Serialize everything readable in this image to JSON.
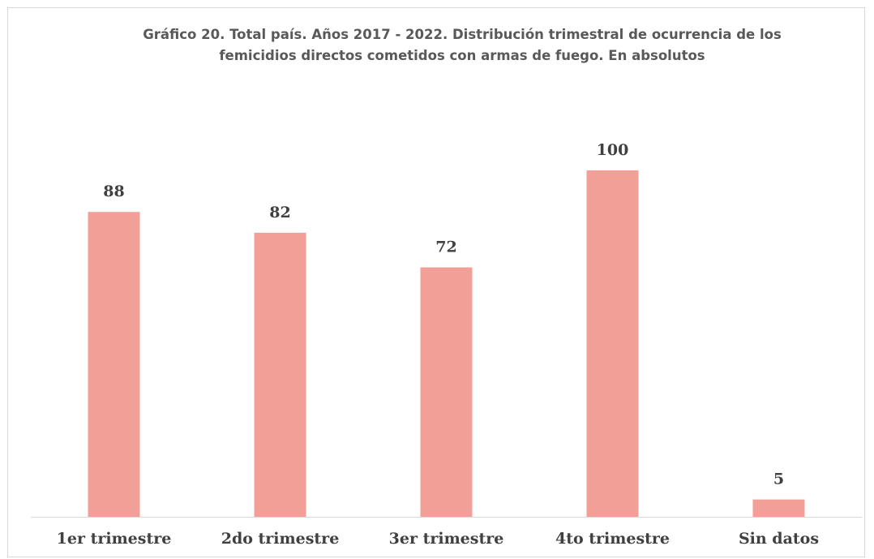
{
  "chart_data": {
    "type": "bar",
    "title": "Gráfico 20. Total país. Años 2017 - 2022. Distribución trimestral de ocurrencia de los femicidios directos cometidos con armas de fuego. En absolutos",
    "categories": [
      "1er trimestre",
      "2do trimestre",
      "3er trimestre",
      "4to trimestre",
      "Sin datos"
    ],
    "values": [
      88,
      82,
      72,
      100,
      5
    ],
    "color": "#f29f97"
  }
}
